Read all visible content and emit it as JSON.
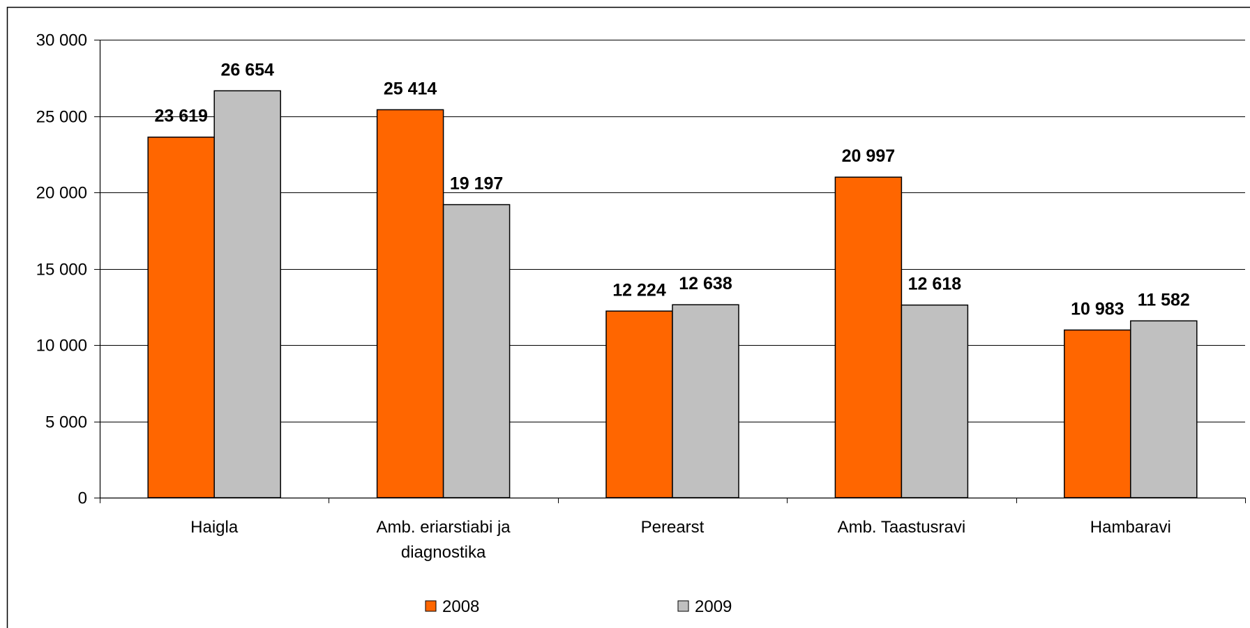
{
  "chart_data": {
    "type": "bar",
    "categories": [
      [
        "Haigla"
      ],
      [
        "Amb. eriarstiabi ja",
        "diagnostika"
      ],
      [
        "Perearst"
      ],
      [
        "Amb. Taastusravi"
      ],
      [
        "Hambaravi"
      ]
    ],
    "series": [
      {
        "name": "2008",
        "color": "#FF6600",
        "values": [
          23619,
          25414,
          12224,
          20997,
          10983
        ],
        "labels": [
          "23 619",
          "25 414",
          "12 224",
          "20 997",
          "10 983"
        ]
      },
      {
        "name": "2009",
        "color": "#C0C0C0",
        "values": [
          26654,
          19197,
          12638,
          12618,
          11582
        ],
        "labels": [
          "26 654",
          "19 197",
          "12 638",
          "12 618",
          "11 582"
        ]
      }
    ],
    "yticks": [
      0,
      5000,
      10000,
      15000,
      20000,
      25000,
      30000
    ],
    "ytick_labels": [
      "0",
      "5 000",
      "10 000",
      "15 000",
      "20 000",
      "25 000",
      "30 000"
    ],
    "ylim": [
      0,
      30000
    ],
    "grid": true,
    "legend": "bottom",
    "title": "",
    "xlabel": "",
    "ylabel": ""
  }
}
